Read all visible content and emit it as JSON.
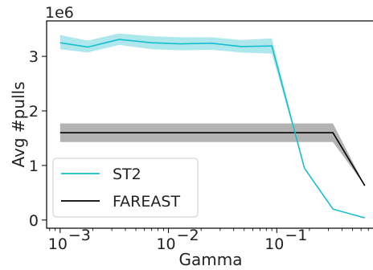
{
  "chart_data": {
    "type": "line",
    "xlabel": "Gamma",
    "ylabel": "Avg #pulls",
    "y_offset_label": "1e6",
    "xscale": "log",
    "xlim": [
      0.00075,
      0.8
    ],
    "ylim": [
      -0.15,
      3.65
    ],
    "x_ticks": [
      {
        "value": 0.001,
        "base": "10",
        "exp": "−3"
      },
      {
        "value": 0.01,
        "base": "10",
        "exp": "−2"
      },
      {
        "value": 0.1,
        "base": "10",
        "exp": "−1"
      }
    ],
    "y_ticks": [
      {
        "value": 0,
        "label": "0"
      },
      {
        "value": 1,
        "label": "1"
      },
      {
        "value": 2,
        "label": "2"
      },
      {
        "value": 3,
        "label": "3"
      }
    ],
    "grid": false,
    "legend_position": "lower-left",
    "series": [
      {
        "name": "ST2",
        "color": "#17becf",
        "band_color": "#aee8ec",
        "x": [
          0.001,
          0.0018,
          0.0035,
          0.007,
          0.013,
          0.025,
          0.047,
          0.09,
          0.18,
          0.33,
          0.65
        ],
        "values": [
          3.25,
          3.17,
          3.31,
          3.25,
          3.23,
          3.24,
          3.18,
          3.19,
          0.95,
          0.2,
          0.04
        ],
        "lower": [
          3.13,
          3.07,
          3.21,
          3.13,
          3.11,
          3.12,
          3.07,
          3.05,
          0.95,
          0.2,
          0.04
        ],
        "upper": [
          3.39,
          3.29,
          3.42,
          3.37,
          3.35,
          3.35,
          3.3,
          3.33,
          0.95,
          0.2,
          0.04
        ]
      },
      {
        "name": "FAREAST",
        "color": "#000000",
        "band_color": "#b3b3b3",
        "x": [
          0.001,
          0.33,
          0.65
        ],
        "values": [
          1.6,
          1.6,
          0.63
        ],
        "lower": [
          1.43,
          1.43,
          0.63
        ],
        "upper": [
          1.77,
          1.77,
          0.63
        ]
      }
    ]
  }
}
